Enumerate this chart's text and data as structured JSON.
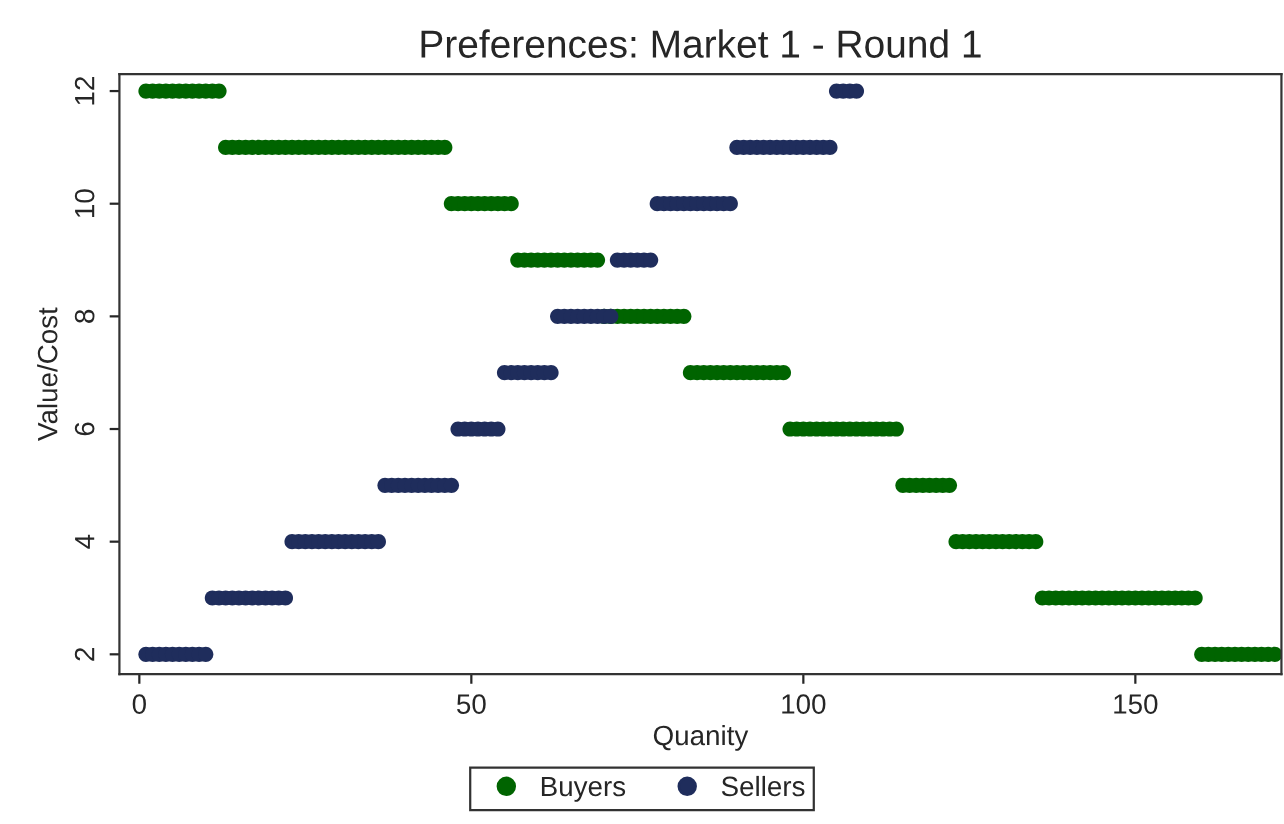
{
  "chart_data": {
    "type": "scatter",
    "title": "Preferences: Market 1 - Round 1",
    "xlabel": "Quanity",
    "ylabel": "Value/Cost",
    "xlim": [
      -3,
      172
    ],
    "ylim": [
      1.65,
      12.3
    ],
    "xticks": [
      0,
      50,
      100,
      150
    ],
    "yticks": [
      2,
      4,
      6,
      8,
      10,
      12
    ],
    "grid": false,
    "legend": "bottom",
    "marker": "circle",
    "series": [
      {
        "name": "Buyers",
        "color": "#006400",
        "x": [
          1,
          2,
          3,
          4,
          5,
          6,
          7,
          8,
          9,
          10,
          11,
          12,
          13,
          14,
          15,
          16,
          17,
          18,
          19,
          20,
          21,
          22,
          23,
          24,
          25,
          26,
          27,
          28,
          29,
          30,
          31,
          32,
          33,
          34,
          35,
          36,
          37,
          38,
          39,
          40,
          41,
          42,
          43,
          44,
          45,
          46,
          47,
          48,
          49,
          50,
          51,
          52,
          53,
          54,
          55,
          56,
          57,
          58,
          59,
          60,
          61,
          62,
          63,
          64,
          65,
          66,
          67,
          68,
          69,
          70,
          71,
          72,
          73,
          74,
          75,
          76,
          77,
          78,
          79,
          80,
          81,
          82,
          83,
          84,
          85,
          86,
          87,
          88,
          89,
          90,
          91,
          92,
          93,
          94,
          95,
          96,
          97,
          98,
          99,
          100,
          101,
          102,
          103,
          104,
          105,
          106,
          107,
          108,
          109,
          110,
          111,
          112,
          113,
          114,
          115,
          116,
          117,
          118,
          119,
          120,
          121,
          122,
          123,
          124,
          125,
          126,
          127,
          128,
          129,
          130,
          131,
          132,
          133,
          134,
          135,
          136,
          137,
          138,
          139,
          140,
          141,
          142,
          143,
          144,
          145,
          146,
          147,
          148,
          149,
          150,
          151,
          152,
          153,
          154,
          155,
          156,
          157,
          158,
          159,
          160,
          161,
          162,
          163,
          164,
          165,
          166,
          167,
          168,
          169,
          170,
          171
        ],
        "values": [
          12,
          12,
          12,
          12,
          12,
          12,
          12,
          12,
          12,
          12,
          12,
          12,
          11,
          11,
          11,
          11,
          11,
          11,
          11,
          11,
          11,
          11,
          11,
          11,
          11,
          11,
          11,
          11,
          11,
          11,
          11,
          11,
          11,
          11,
          11,
          11,
          11,
          11,
          11,
          11,
          11,
          11,
          11,
          11,
          11,
          11,
          10,
          10,
          10,
          10,
          10,
          10,
          10,
          10,
          10,
          10,
          9,
          9,
          9,
          9,
          9,
          9,
          9,
          9,
          9,
          9,
          9,
          9,
          9,
          8,
          8,
          8,
          8,
          8,
          8,
          8,
          8,
          8,
          8,
          8,
          8,
          8,
          7,
          7,
          7,
          7,
          7,
          7,
          7,
          7,
          7,
          7,
          7,
          7,
          7,
          7,
          7,
          6,
          6,
          6,
          6,
          6,
          6,
          6,
          6,
          6,
          6,
          6,
          6,
          6,
          6,
          6,
          6,
          6,
          5,
          5,
          5,
          5,
          5,
          5,
          5,
          5,
          4,
          4,
          4,
          4,
          4,
          4,
          4,
          4,
          4,
          4,
          4,
          4,
          4,
          3,
          3,
          3,
          3,
          3,
          3,
          3,
          3,
          3,
          3,
          3,
          3,
          3,
          3,
          3,
          3,
          3,
          3,
          3,
          3,
          3,
          3,
          3,
          3,
          2,
          2,
          2,
          2,
          2,
          2,
          2,
          2,
          2,
          2,
          2,
          2
        ]
      },
      {
        "name": "Sellers",
        "color": "#1f2d5c",
        "x": [
          1,
          2,
          3,
          4,
          5,
          6,
          7,
          8,
          9,
          10,
          11,
          12,
          13,
          14,
          15,
          16,
          17,
          18,
          19,
          20,
          21,
          22,
          23,
          24,
          25,
          26,
          27,
          28,
          29,
          30,
          31,
          32,
          33,
          34,
          35,
          36,
          37,
          38,
          39,
          40,
          41,
          42,
          43,
          44,
          45,
          46,
          47,
          48,
          49,
          50,
          51,
          52,
          53,
          54,
          55,
          56,
          57,
          58,
          59,
          60,
          61,
          62,
          63,
          64,
          65,
          66,
          67,
          68,
          69,
          70,
          71,
          72,
          73,
          74,
          75,
          76,
          77,
          78,
          79,
          80,
          81,
          82,
          83,
          84,
          85,
          86,
          87,
          88,
          89,
          90,
          91,
          92,
          93,
          94,
          95,
          96,
          97,
          98,
          99,
          100,
          101,
          102,
          103,
          104,
          105,
          106,
          107,
          108
        ],
        "values": [
          2,
          2,
          2,
          2,
          2,
          2,
          2,
          2,
          2,
          2,
          3,
          3,
          3,
          3,
          3,
          3,
          3,
          3,
          3,
          3,
          3,
          3,
          4,
          4,
          4,
          4,
          4,
          4,
          4,
          4,
          4,
          4,
          4,
          4,
          4,
          4,
          5,
          5,
          5,
          5,
          5,
          5,
          5,
          5,
          5,
          5,
          5,
          6,
          6,
          6,
          6,
          6,
          6,
          6,
          7,
          7,
          7,
          7,
          7,
          7,
          7,
          7,
          8,
          8,
          8,
          8,
          8,
          8,
          8,
          8,
          8,
          9,
          9,
          9,
          9,
          9,
          9,
          10,
          10,
          10,
          10,
          10,
          10,
          10,
          10,
          10,
          10,
          10,
          10,
          11,
          11,
          11,
          11,
          11,
          11,
          11,
          11,
          11,
          11,
          11,
          11,
          11,
          11,
          11,
          12,
          12,
          12,
          12
        ]
      }
    ]
  }
}
